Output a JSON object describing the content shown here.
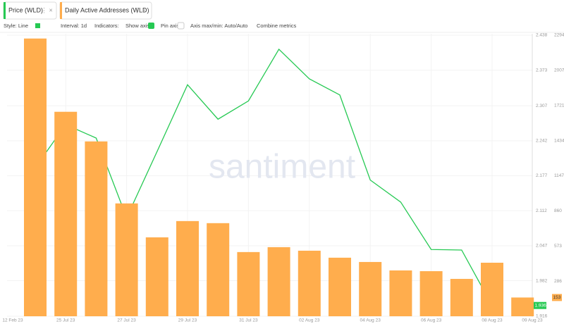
{
  "ui": {
    "tabs": [
      "Price (WLD)",
      "Daily Active Addresses (WLD)"
    ],
    "toolbar": [
      "Style: Line",
      "Interval: 1d",
      "Indicators:",
      "Show axis",
      "Pin axis",
      "Axis max/min: Auto/Auto",
      "Combine metrics"
    ],
    "watermark": "santiment"
  },
  "chart_data": {
    "type": "bar_line",
    "categories": [
      null,
      "25 Jul 23",
      null,
      "27 Jul 23",
      null,
      "29 Jul 23",
      null,
      "31 Jul 23",
      null,
      "02 Aug 23",
      null,
      "04 Aug 23",
      null,
      "06 Aug 23",
      null,
      "08 Aug 23",
      null
    ],
    "edge_labels": [
      "12 Feb 23",
      "09 Aug 23"
    ],
    "series": [
      {
        "name": "Price (WLD)",
        "type": "line",
        "color": "#26c953",
        "axis": "y",
        "values": [
          2.192,
          2.272,
          2.247,
          2.099,
          2.222,
          2.346,
          2.282,
          2.316,
          2.412,
          2.357,
          2.327,
          2.169,
          2.128,
          2.04,
          2.039,
          1.936,
          null
        ]
      },
      {
        "name": "Daily Active Addresses (WLD)",
        "type": "bar",
        "color": "#ffad4d",
        "axis": "y2",
        "values": [
          2267,
          1669,
          1427,
          921,
          644,
          777,
          760,
          524,
          564,
          535,
          478,
          443,
          374,
          368,
          305,
          437,
          153
        ]
      }
    ],
    "ylim": [
      1.916,
      2.438
    ],
    "yticks": [
      1.916,
      1.982,
      2.047,
      2.112,
      2.177,
      2.242,
      2.307,
      2.373,
      2.438
    ],
    "y2lim": [
      0,
      2294
    ],
    "y2ticks": [
      286,
      573,
      860,
      1147,
      1434,
      1721,
      2007,
      2294
    ],
    "grid": true
  }
}
